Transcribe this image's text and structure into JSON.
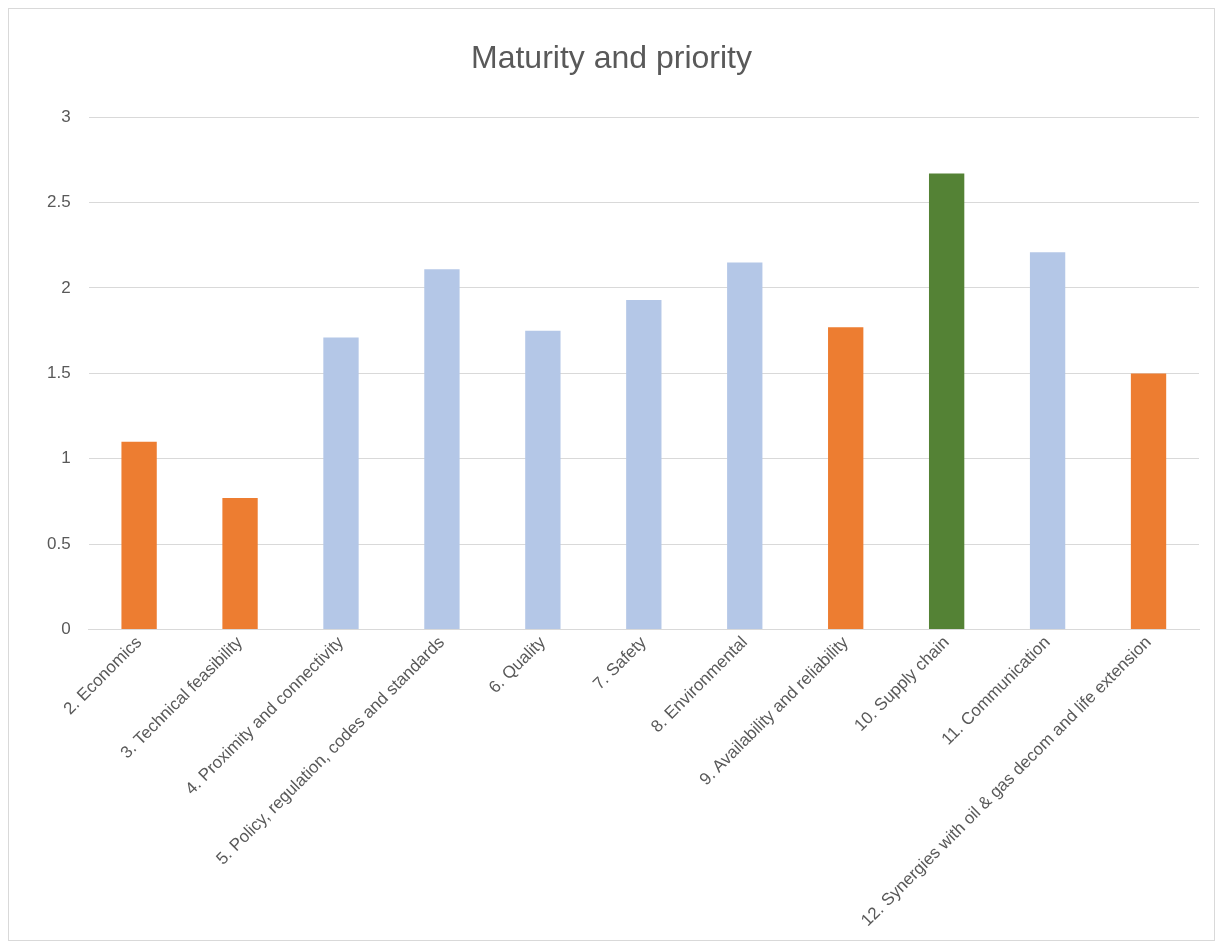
{
  "chart_data": {
    "type": "bar",
    "title": "Maturity and priority",
    "categories": [
      "2. Economics",
      "3. Technical feasibility",
      "4. Proximity and connectivity",
      "5. Policy, regulation, codes and standards",
      "6. Quality",
      "7. Safety",
      "8. Environmental",
      "9. Availability and reliability",
      "10. Supply chain",
      "11. Communication",
      "12. Synergies with oil & gas decom and life extension"
    ],
    "values": [
      1.1,
      0.77,
      1.71,
      2.11,
      1.75,
      1.93,
      2.15,
      1.77,
      2.67,
      2.21,
      1.5
    ],
    "colors": [
      "#ed7d31",
      "#ed7d31",
      "#b4c7e7",
      "#b4c7e7",
      "#b4c7e7",
      "#b4c7e7",
      "#b4c7e7",
      "#ed7d31",
      "#548235",
      "#b4c7e7",
      "#ed7d31"
    ],
    "ylim": [
      0,
      3
    ],
    "yticks": [
      0,
      0.5,
      1,
      1.5,
      2,
      2.5,
      3
    ],
    "grid": "y",
    "legend": false
  }
}
